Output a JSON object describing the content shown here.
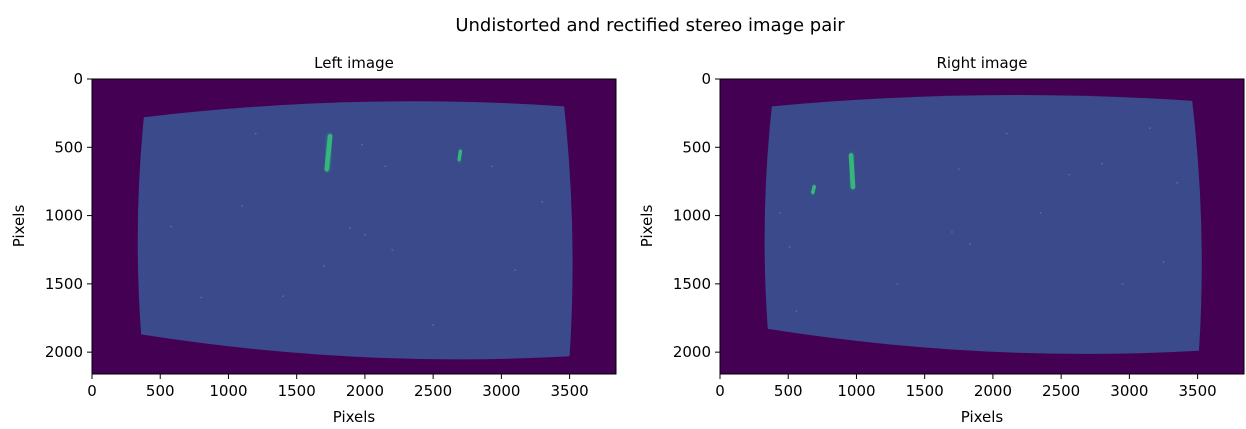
{
  "figure": {
    "suptitle": "Undistorted and rectified stereo image pair"
  },
  "colors": {
    "background": "#440154",
    "image_field": "#3b4a8a",
    "streak_core": "#35b779",
    "streak_glow": "#21918c"
  },
  "chart_data": [
    {
      "type": "heatmap",
      "title": "Left image",
      "xlabel": "Pixels",
      "ylabel": "Pixels",
      "xlim": [
        0,
        3840
      ],
      "ylim": [
        2160,
        0
      ],
      "xticks": [
        0,
        500,
        1000,
        1500,
        2000,
        2500,
        3000,
        3500
      ],
      "yticks": [
        0,
        500,
        1000,
        1500,
        2000
      ],
      "colormap": "viridis",
      "rectified_region": {
        "corners": {
          "top_left": [
            380,
            280
          ],
          "top_right": [
            3460,
            200
          ],
          "bottom_right": [
            3500,
            2030
          ],
          "bottom_left": [
            360,
            1870
          ]
        }
      },
      "streaks": [
        {
          "x1": 1745,
          "y1": 420,
          "x2": 1720,
          "y2": 660,
          "width": 30
        },
        {
          "x1": 2700,
          "y1": 530,
          "x2": 2690,
          "y2": 590,
          "width": 20
        }
      ],
      "speckles": [
        [
          2930,
          640
        ],
        [
          1980,
          480
        ],
        [
          2150,
          640
        ],
        [
          1890,
          1090
        ],
        [
          2000,
          1140
        ],
        [
          1700,
          1370
        ],
        [
          1400,
          1590
        ],
        [
          1100,
          930
        ],
        [
          580,
          1080
        ],
        [
          3100,
          1400
        ],
        [
          2500,
          1800
        ],
        [
          1200,
          400
        ],
        [
          3300,
          900
        ],
        [
          800,
          1600
        ],
        [
          2200,
          1250
        ]
      ]
    },
    {
      "type": "heatmap",
      "title": "Right image",
      "xlabel": "Pixels",
      "ylabel": "Pixels",
      "xlim": [
        0,
        3840
      ],
      "ylim": [
        2160,
        0
      ],
      "xticks": [
        0,
        500,
        1000,
        1500,
        2000,
        2500,
        3000,
        3500
      ],
      "yticks": [
        0,
        500,
        1000,
        1500,
        2000
      ],
      "colormap": "viridis",
      "rectified_region": {
        "corners": {
          "top_left": [
            380,
            200
          ],
          "top_right": [
            3460,
            160
          ],
          "bottom_right": [
            3510,
            1990
          ],
          "bottom_left": [
            350,
            1830
          ]
        }
      },
      "streaks": [
        {
          "x1": 960,
          "y1": 560,
          "x2": 975,
          "y2": 790,
          "width": 30
        },
        {
          "x1": 690,
          "y1": 790,
          "x2": 680,
          "y2": 830,
          "width": 22
        }
      ],
      "speckles": [
        [
          3150,
          360
        ],
        [
          2800,
          620
        ],
        [
          2560,
          700
        ],
        [
          1750,
          660
        ],
        [
          3350,
          760
        ],
        [
          2350,
          980
        ],
        [
          440,
          980
        ],
        [
          1700,
          1120
        ],
        [
          1830,
          1210
        ],
        [
          510,
          1230
        ],
        [
          3250,
          1340
        ],
        [
          560,
          1700
        ],
        [
          2950,
          1500
        ],
        [
          1300,
          1500
        ],
        [
          2100,
          400
        ]
      ]
    }
  ]
}
